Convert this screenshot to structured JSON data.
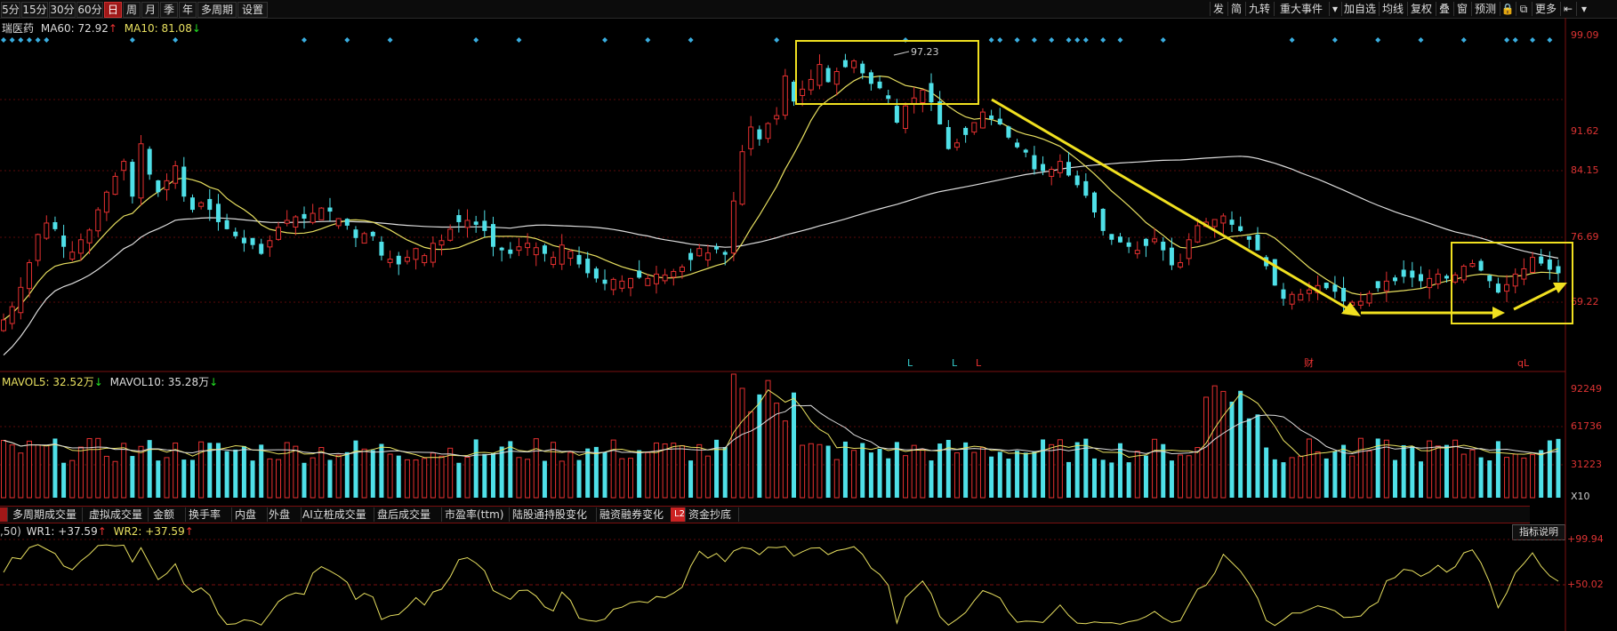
{
  "toolbar": {
    "timeframes": [
      "5分",
      "15分",
      "30分",
      "60分",
      "日",
      "周",
      "月",
      "季",
      "年",
      "多周期",
      "设置"
    ],
    "active_timeframe": "日",
    "right_buttons": [
      "发",
      "简",
      "九转",
      "重大事件",
      "加自选",
      "均线",
      "复权",
      "叠",
      "窗",
      "预测",
      "更多"
    ]
  },
  "main_legend": {
    "name": "瑞医药",
    "ma60_label": "MA60: 72.92",
    "ma10_label": "MA10: 81.08"
  },
  "vol_legend": {
    "mavol5_label": "MAVOL5: 32.52万",
    "mavol10_label": "MAVOL10: 35.28万"
  },
  "wr_legend": {
    "params": ",50)",
    "wr1_label": "WR1: +37.59",
    "wr2_label": "WR2: +37.59"
  },
  "indicator_tabs": [
    "多周期成交量",
    "虚拟成交量",
    "金额",
    "换手率",
    "内盘",
    "外盘",
    "AI立桩成交量",
    "盘后成交量",
    "市盈率(ttm)",
    "陆股通持股变化",
    "融资融券变化",
    "资金抄底"
  ],
  "indicator_help": "指标说明",
  "chart_data": [
    {
      "type": "candlestick",
      "yticks": [
        99.09,
        91.62,
        84.15,
        76.69,
        69.22
      ],
      "high_annotation": "97.23",
      "event_markers": [
        "L",
        "L",
        "L",
        "财",
        "qL"
      ],
      "series": [
        {
          "name": "MA10",
          "color": "#e8e060"
        },
        {
          "name": "MA60",
          "color": "#dddddd"
        }
      ],
      "closes": [
        66.5,
        68.0,
        70.2,
        73.0,
        76.2,
        77.5,
        76.8,
        74.8,
        74.2,
        75.6,
        76.7,
        79.0,
        81.0,
        82.8,
        84.5,
        80.5,
        86.5,
        83.0,
        81.0,
        82.3,
        84.0,
        80.5,
        79.0,
        79.8,
        79.0,
        77.6,
        76.8,
        76.0,
        75.2,
        75.0,
        74.0,
        75.5,
        77.0,
        77.8,
        78.2,
        78.0,
        78.6,
        79.2,
        78.8,
        78.0,
        77.2,
        75.8,
        76.3,
        76.0,
        73.8,
        73.4,
        72.8,
        73.6,
        74.6,
        73.8,
        75.2,
        75.5,
        76.8,
        77.6,
        77.8,
        77.3,
        76.6,
        74.8,
        74.4,
        74.0,
        74.8,
        75.2,
        74.7,
        74.0,
        73.6,
        75.0,
        74.3,
        72.8,
        71.8,
        71.2,
        70.6,
        71.1,
        70.9,
        71.2,
        71.3,
        71.2,
        71.7,
        71.6,
        72.0,
        72.5,
        73.3,
        74.6,
        74.1,
        74.5,
        73.9,
        80.0,
        85.6,
        88.4,
        87.0,
        88.8,
        89.7,
        94.2,
        91.3,
        92.7,
        93.8,
        95.5,
        93.5,
        94.7,
        95.2,
        95.9,
        94.5,
        93.3,
        92.8,
        91.6,
        88.9,
        90.8,
        91.7,
        92.6,
        91.2,
        88.7,
        85.9,
        86.6,
        87.5,
        88.9,
        90.1,
        89.3,
        88.7,
        87.2,
        86.1,
        85.5,
        83.6,
        83.4,
        83.6,
        84.5,
        82.9,
        81.8,
        80.6,
        78.7,
        76.6,
        75.6,
        75.3,
        74.8,
        74.4,
        74.9,
        75.7,
        74.4,
        72.7,
        73.0,
        75.6,
        77.2,
        77.6,
        77.9,
        78.3,
        77.3,
        76.6,
        75.6,
        74.4,
        72.6,
        70.4,
        68.9,
        69.4,
        69.4,
        69.9,
        70.4,
        70.1,
        69.7,
        68.6,
        68.5,
        68.6,
        69.5,
        70.1,
        70.9,
        70.9,
        71.4,
        71.3,
        70.9,
        71.2,
        71.7,
        71.2,
        71.6,
        72.6,
        72.9,
        72.1,
        70.9,
        69.6,
        70.5,
        71.7,
        72.3,
        73.6,
        72.9,
        72.2,
        71.8
      ]
    },
    {
      "type": "bar",
      "yticks": [
        92249,
        61736,
        31223
      ],
      "unit_label": "X10"
    },
    {
      "type": "line",
      "yticks": [
        "+99.94",
        "+50.02"
      ]
    }
  ]
}
